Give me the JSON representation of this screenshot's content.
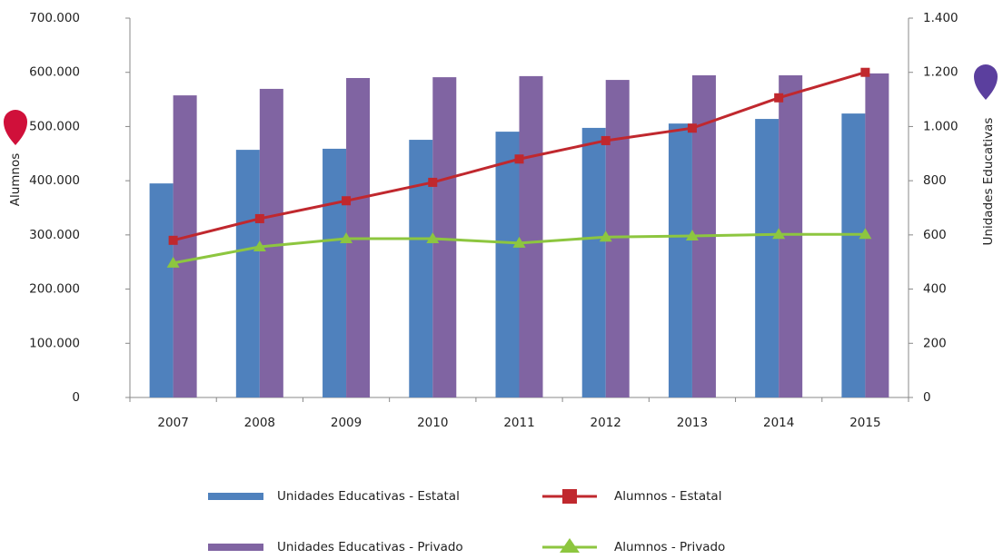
{
  "chart_data": {
    "type": "bar",
    "categories": [
      "2007",
      "2008",
      "2009",
      "2010",
      "2011",
      "2012",
      "2013",
      "2014",
      "2015"
    ],
    "ylabel": "Alumnos",
    "y2label": "Unidades Educativas",
    "ylim": [
      0,
      700000
    ],
    "yticks": [
      0,
      {
        "value": 100000,
        "label": "100.000"
      },
      {
        "value": 200000,
        "label": "200.000"
      },
      {
        "value": 300000,
        "label": "300.000"
      },
      {
        "value": 400000,
        "label": "400.000"
      },
      {
        "value": 500000,
        "label": "500.000"
      },
      {
        "value": 600000,
        "label": "600.000"
      },
      {
        "value": 700000,
        "label": "700.000"
      }
    ],
    "y2lim": [
      0,
      1400
    ],
    "y2ticks": [
      0,
      200,
      400,
      600,
      800,
      {
        "value": 1000,
        "label": "1.000"
      },
      {
        "value": 1200,
        "label": "1.200"
      },
      {
        "value": 1400,
        "label": "1.400"
      }
    ],
    "series": [
      {
        "name": "Unidades Educativas - Estatal",
        "type": "bar",
        "axis": "y2",
        "color": "#4f81bd",
        "values": [
          790,
          914,
          918,
          951,
          981,
          995,
          1011,
          1028,
          1048
        ]
      },
      {
        "name": "Unidades Educativas - Privado",
        "type": "bar",
        "axis": "y2",
        "color": "#8064a2",
        "values": [
          1115,
          1139,
          1179,
          1182,
          1186,
          1172,
          1189,
          1189,
          1196
        ]
      },
      {
        "name": "Alumnos - Estatal",
        "type": "line",
        "marker": "square",
        "color": "#c0282e",
        "values": [
          290000,
          330000,
          363000,
          397000,
          440000,
          474000,
          497000,
          553000,
          600000
        ]
      },
      {
        "name": "Alumnos - Privado",
        "type": "line",
        "marker": "triangle",
        "color": "#8dc63f",
        "values": [
          248000,
          278000,
          293000,
          293000,
          285000,
          296000,
          298000,
          301000,
          301000
        ]
      }
    ]
  }
}
